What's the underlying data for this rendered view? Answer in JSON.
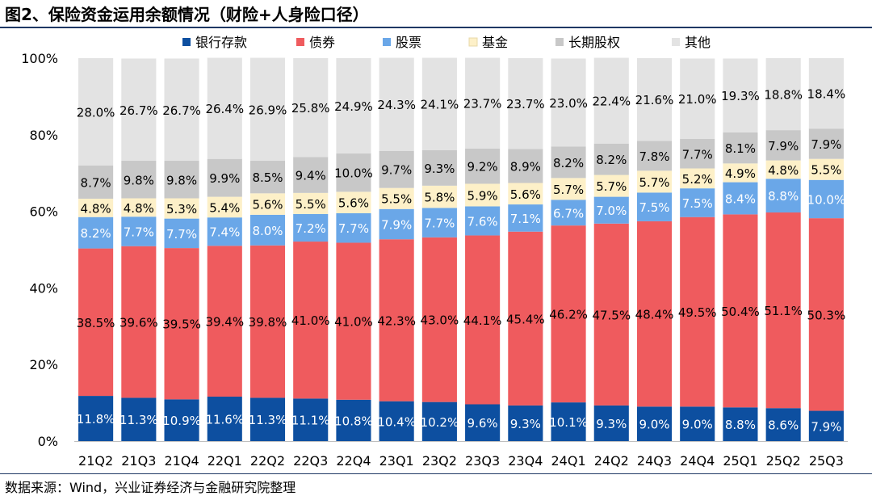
{
  "title": "图2、保险资金运用余额情况（财险+人身险口径）",
  "source": "数据来源：Wind，兴业证券经济与金融研究院整理",
  "chart_data": {
    "type": "bar",
    "stacked": true,
    "percent_stacked": true,
    "categories": [
      "21Q2",
      "21Q3",
      "21Q4",
      "22Q1",
      "22Q2",
      "22Q3",
      "22Q4",
      "23Q1",
      "23Q2",
      "23Q3",
      "23Q4",
      "24Q1",
      "24Q2",
      "24Q3",
      "24Q4",
      "25Q1",
      "25Q2",
      "25Q3"
    ],
    "ylim": [
      0,
      100
    ],
    "yticks": [
      "0%",
      "20%",
      "40%",
      "60%",
      "80%",
      "100%"
    ],
    "legend_position": "top",
    "grid": false,
    "series": [
      {
        "name": "银行存款",
        "color": "#0d4fa0",
        "label_color": "#ffffff",
        "values": [
          11.8,
          11.3,
          10.9,
          11.6,
          11.3,
          11.1,
          10.8,
          10.4,
          10.2,
          9.6,
          9.3,
          10.1,
          9.3,
          9.0,
          9.0,
          8.8,
          8.6,
          7.9
        ],
        "labels": [
          "11.8%",
          "11.3%",
          "10.9%",
          "11.6%",
          "11.3%",
          "11.1%",
          "10.8%",
          "10.4%",
          "10.2%",
          "9.6%",
          "9.3%",
          "10.1%",
          "9.3%",
          "9.0%",
          "9.0%",
          "8.8%",
          "8.6%",
          "7.9%"
        ]
      },
      {
        "name": "债券",
        "color": "#ef5b5e",
        "label_color": "#000000",
        "values": [
          38.5,
          39.6,
          39.5,
          39.4,
          39.8,
          41.0,
          41.0,
          42.3,
          43.0,
          44.1,
          45.4,
          46.2,
          47.5,
          48.4,
          49.5,
          50.4,
          51.1,
          50.3
        ],
        "labels": [
          "38.5%",
          "39.6%",
          "39.5%",
          "39.4%",
          "39.8%",
          "41.0%",
          "41.0%",
          "42.3%",
          "43.0%",
          "44.1%",
          "45.4%",
          "46.2%",
          "47.5%",
          "48.4%",
          "49.5%",
          "50.4%",
          "51.1%",
          "50.3%"
        ]
      },
      {
        "name": "股票",
        "color": "#6aa7e8",
        "label_color": "#ffffff",
        "values": [
          8.2,
          7.7,
          7.7,
          7.4,
          8.0,
          7.2,
          7.7,
          7.9,
          7.7,
          7.6,
          7.1,
          6.7,
          7.0,
          7.5,
          7.5,
          8.4,
          8.8,
          10.0
        ],
        "labels": [
          "8.2%",
          "7.7%",
          "7.7%",
          "7.4%",
          "8.0%",
          "7.2%",
          "7.7%",
          "7.9%",
          "7.7%",
          "7.6%",
          "7.1%",
          "6.7%",
          "7.0%",
          "7.5%",
          "7.5%",
          "8.4%",
          "8.8%",
          "10.0%"
        ]
      },
      {
        "name": "基金",
        "color": "#fdf0c8",
        "label_color": "#000000",
        "values": [
          4.8,
          4.8,
          5.3,
          5.4,
          5.6,
          5.5,
          5.6,
          5.5,
          5.8,
          5.9,
          5.6,
          5.7,
          5.7,
          5.7,
          5.2,
          4.9,
          4.8,
          5.5
        ],
        "labels": [
          "4.8%",
          "4.8%",
          "5.3%",
          "5.4%",
          "5.6%",
          "5.5%",
          "5.6%",
          "5.5%",
          "5.8%",
          "5.9%",
          "5.6%",
          "5.7%",
          "5.7%",
          "5.7%",
          "5.2%",
          "4.9%",
          "4.8%",
          "5.5%"
        ]
      },
      {
        "name": "长期股权",
        "color": "#c8c8c8",
        "label_color": "#000000",
        "values": [
          8.7,
          9.8,
          9.8,
          9.9,
          8.5,
          9.4,
          10.0,
          9.7,
          9.3,
          9.2,
          8.9,
          8.2,
          8.2,
          7.8,
          7.7,
          8.1,
          7.9,
          7.9
        ],
        "labels": [
          "8.7%",
          "9.8%",
          "9.8%",
          "9.9%",
          "8.5%",
          "9.4%",
          "10.0%",
          "9.7%",
          "9.3%",
          "9.2%",
          "8.9%",
          "8.2%",
          "8.2%",
          "7.8%",
          "7.7%",
          "8.1%",
          "7.9%",
          "7.9%"
        ]
      },
      {
        "name": "其他",
        "color": "#e3e3e3",
        "label_color": "#000000",
        "values": [
          28.0,
          26.7,
          26.7,
          26.4,
          26.9,
          25.8,
          24.9,
          24.3,
          24.1,
          23.7,
          23.7,
          23.0,
          22.4,
          21.6,
          21.0,
          19.3,
          18.8,
          18.4
        ],
        "labels": [
          "28.0%",
          "26.7%",
          "26.7%",
          "26.4%",
          "26.9%",
          "25.8%",
          "24.9%",
          "24.3%",
          "24.1%",
          "23.7%",
          "23.7%",
          "23.0%",
          "22.4%",
          "21.6%",
          "21.0%",
          "19.3%",
          "18.8%",
          "18.4%"
        ]
      }
    ]
  }
}
